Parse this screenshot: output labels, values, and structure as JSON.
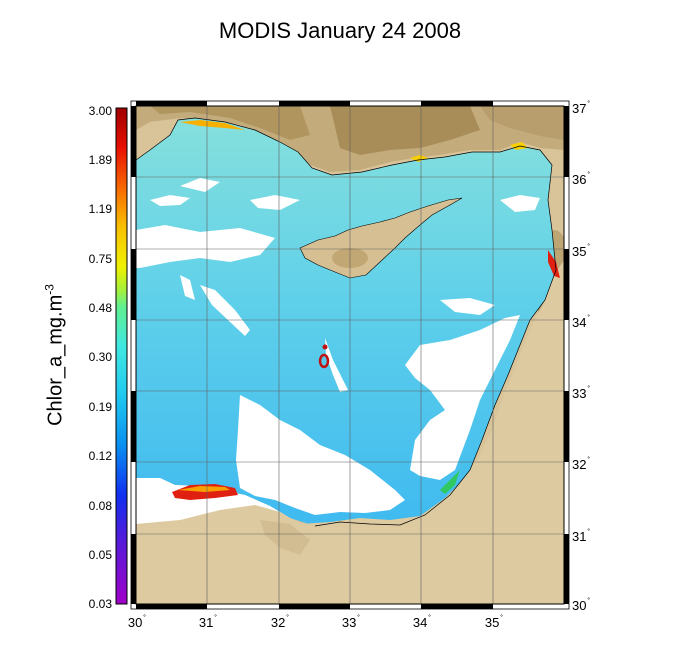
{
  "title": "MODIS January 24 2008",
  "colorbar": {
    "label": "Chlor_a_mg.m",
    "label_exponent": "-3",
    "ticks": [
      "3.00",
      "1.89",
      "1.19",
      "0.75",
      "0.48",
      "0.30",
      "0.19",
      "0.12",
      "0.08",
      "0.05",
      "0.03"
    ]
  },
  "map": {
    "lat_labels": [
      "37",
      "36",
      "35",
      "34",
      "33",
      "32",
      "31",
      "30"
    ],
    "lon_labels": [
      "30",
      "31",
      "32",
      "33",
      "34",
      "35"
    ],
    "degree_symbol": "˚",
    "colors": {
      "land": "#d9c49a",
      "highland": "#b49a6a",
      "no_data": "#ffffff",
      "sea_low": "#4fc3ee",
      "sea_mid": "#7fe0d8",
      "coastal_high": "#e02010"
    }
  }
}
